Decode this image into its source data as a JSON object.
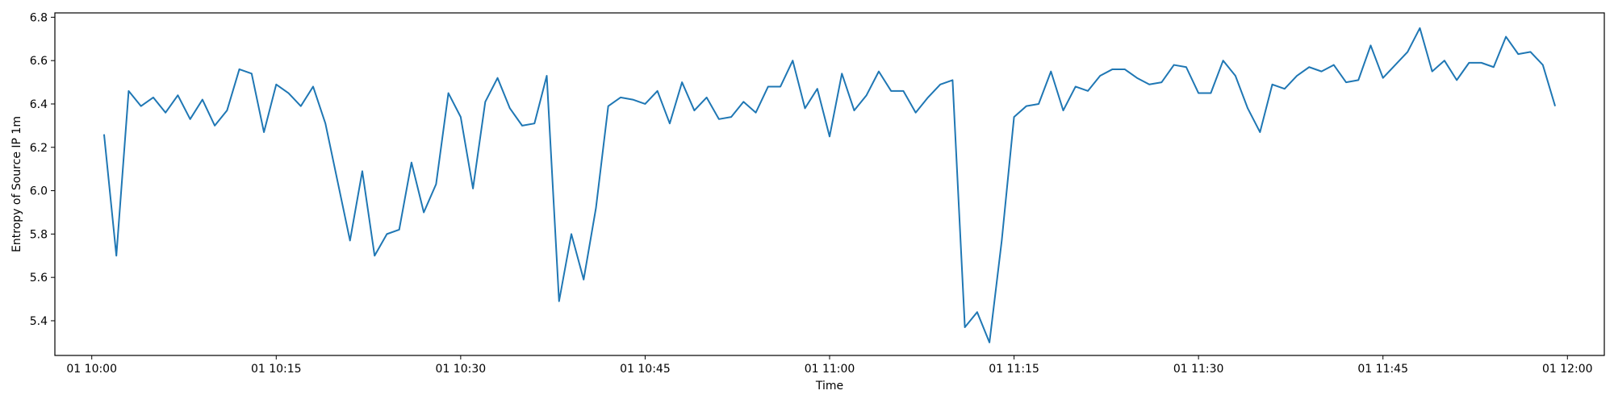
{
  "chart_data": {
    "type": "line",
    "title": "",
    "xlabel": "Time",
    "ylabel": "Entropy of Source IP 1m",
    "xlim": [
      "01 09:57",
      "02 12:03"
    ],
    "ylim": [
      5.24,
      6.82
    ],
    "x_ticks": [
      {
        "t": "01 10:00",
        "label": "01 10:00"
      },
      {
        "t": "01 10:15",
        "label": "01 10:15"
      },
      {
        "t": "01 10:30",
        "label": "01 10:30"
      },
      {
        "t": "01 10:45",
        "label": "01 10:45"
      },
      {
        "t": "01 11:00",
        "label": "01 11:00"
      },
      {
        "t": "01 11:15",
        "label": "01 11:15"
      },
      {
        "t": "01 11:30",
        "label": "01 11:30"
      },
      {
        "t": "01 11:45",
        "label": "01 11:45"
      },
      {
        "t": "01 12:00",
        "label": "01 12:00"
      }
    ],
    "y_ticks": [
      "5.4",
      "5.6",
      "5.8",
      "6.0",
      "6.2",
      "6.4",
      "6.6",
      "6.8"
    ],
    "grid": false,
    "color": "#1f77b4",
    "series": [
      {
        "x": [
          "01 10:01",
          "01 10:02",
          "01 10:03",
          "01 10:04",
          "01 10:05",
          "01 10:06",
          "01 10:07",
          "01 10:08",
          "01 10:09",
          "01 10:10",
          "01 10:11",
          "01 10:12",
          "01 10:13",
          "01 10:14",
          "01 10:15",
          "01 10:16",
          "01 10:17",
          "01 10:18",
          "01 10:19",
          "01 10:20",
          "01 10:21",
          "01 10:22",
          "01 10:23",
          "01 10:24",
          "01 10:25",
          "01 10:26",
          "01 10:27",
          "01 10:28",
          "01 10:29",
          "01 10:30",
          "01 10:31",
          "01 10:32",
          "01 10:33",
          "01 10:34",
          "01 10:35",
          "01 10:36",
          "01 10:37",
          "01 10:38",
          "01 10:39",
          "01 10:40",
          "01 10:41",
          "01 10:42",
          "01 10:43",
          "01 10:44",
          "01 10:45",
          "01 10:46",
          "01 10:47",
          "01 10:48",
          "01 10:49",
          "01 10:50",
          "01 10:51",
          "01 10:52",
          "01 10:53",
          "01 10:54",
          "01 10:55",
          "01 10:56",
          "01 10:57",
          "01 10:58",
          "01 10:59",
          "01 11:00",
          "01 11:01",
          "01 11:02",
          "01 11:03",
          "01 11:04",
          "01 11:05",
          "01 11:06",
          "01 11:07",
          "01 11:08",
          "01 11:09",
          "01 11:10",
          "01 11:11",
          "01 11:12",
          "01 11:13",
          "01 11:14",
          "01 11:15",
          "01 11:16",
          "01 11:17",
          "01 11:18",
          "01 11:19",
          "01 11:20",
          "01 11:21",
          "01 11:22",
          "01 11:23",
          "01 11:24",
          "01 11:25",
          "01 11:26",
          "01 11:27",
          "01 11:28",
          "01 11:29",
          "01 11:30",
          "01 11:31",
          "01 11:32",
          "01 11:33",
          "01 11:34",
          "01 11:35",
          "01 11:36",
          "01 11:37",
          "01 11:38",
          "01 11:39",
          "01 11:40",
          "01 11:41",
          "01 11:42",
          "01 11:43",
          "01 11:44",
          "01 11:45",
          "01 11:46",
          "01 11:47",
          "01 11:48",
          "01 11:49",
          "01 11:50",
          "01 11:51",
          "01 11:52",
          "01 11:53",
          "01 11:54",
          "01 11:55",
          "01 11:56",
          "01 11:57",
          "01 11:58",
          "01 11:59"
        ],
        "y": [
          6.26,
          5.7,
          6.46,
          6.39,
          6.43,
          6.36,
          6.44,
          6.33,
          6.42,
          6.3,
          6.37,
          6.56,
          6.54,
          6.27,
          6.49,
          6.45,
          6.39,
          6.48,
          6.31,
          6.04,
          5.77,
          6.09,
          5.7,
          5.8,
          5.82,
          6.13,
          5.9,
          6.03,
          6.45,
          6.34,
          6.01,
          6.41,
          6.52,
          6.38,
          6.3,
          6.31,
          6.53,
          5.49,
          5.8,
          5.59,
          5.92,
          6.39,
          6.43,
          6.42,
          6.4,
          6.46,
          6.31,
          6.5,
          6.37,
          6.43,
          6.33,
          6.34,
          6.41,
          6.36,
          6.48,
          6.48,
          6.6,
          6.38,
          6.47,
          6.25,
          6.54,
          6.37,
          6.44,
          6.55,
          6.46,
          6.46,
          6.36,
          6.43,
          6.49,
          6.51,
          5.37,
          5.44,
          5.3,
          5.77,
          6.34,
          6.39,
          6.4,
          6.55,
          6.37,
          6.48,
          6.46,
          6.53,
          6.56,
          6.56,
          6.52,
          6.49,
          6.5,
          6.58,
          6.57,
          6.45,
          6.45,
          6.6,
          6.53,
          6.38,
          6.27,
          6.49,
          6.47,
          6.53,
          6.57,
          6.55,
          6.58,
          6.5,
          6.51,
          6.67,
          6.52,
          6.58,
          6.64,
          6.75,
          6.55,
          6.6,
          6.51,
          6.59,
          6.59,
          6.57,
          6.71,
          6.63,
          6.64,
          6.58,
          6.39
        ]
      }
    ]
  }
}
